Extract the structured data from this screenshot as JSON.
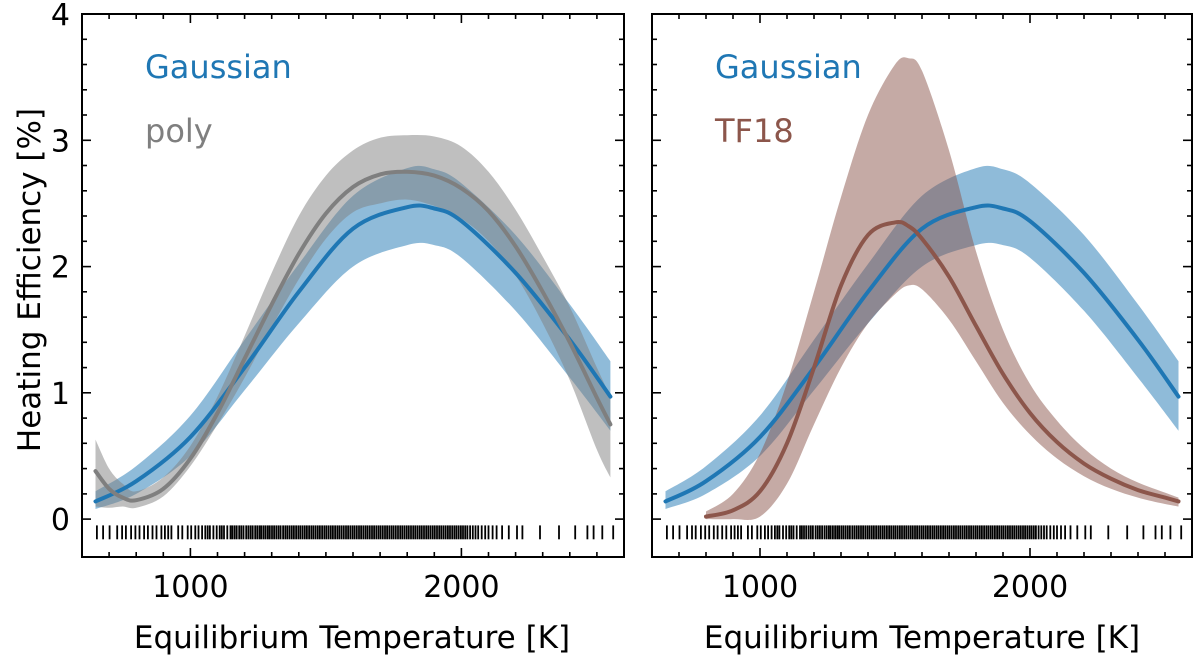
{
  "chart_data": [
    {
      "type": "line",
      "panel": "left",
      "xlabel": "Equilibrium Temperature [K]",
      "ylabel": "Heating Efficiency [%]",
      "xlim": [
        600,
        2600
      ],
      "ylim": [
        -0.3,
        4
      ],
      "xticks": [
        1000,
        2000
      ],
      "yticks": [
        0,
        1,
        2,
        3,
        4
      ],
      "legend": [
        {
          "label": "Gaussian",
          "color": "#1f77b4"
        },
        {
          "label": "poly",
          "color": "#7f7f7f"
        }
      ],
      "series": [
        {
          "name": "Gaussian",
          "color": "#1f77b4",
          "x": [
            650,
            800,
            1000,
            1200,
            1400,
            1600,
            1800,
            1900,
            2000,
            2200,
            2400,
            2550
          ],
          "y": [
            0.14,
            0.3,
            0.65,
            1.2,
            1.8,
            2.3,
            2.47,
            2.46,
            2.36,
            1.95,
            1.42,
            0.97
          ],
          "lower": [
            0.08,
            0.2,
            0.5,
            1.02,
            1.55,
            2.0,
            2.17,
            2.17,
            2.07,
            1.65,
            1.12,
            0.7
          ],
          "upper": [
            0.22,
            0.42,
            0.82,
            1.42,
            2.02,
            2.56,
            2.78,
            2.77,
            2.66,
            2.25,
            1.7,
            1.25
          ]
        },
        {
          "name": "poly",
          "color": "#7f7f7f",
          "x": [
            650,
            700,
            750,
            800,
            900,
            1000,
            1100,
            1200,
            1300,
            1400,
            1500,
            1600,
            1700,
            1800,
            1900,
            2000,
            2100,
            2200,
            2300,
            2400,
            2500,
            2550
          ],
          "y": [
            0.38,
            0.24,
            0.17,
            0.15,
            0.24,
            0.48,
            0.84,
            1.27,
            1.7,
            2.1,
            2.42,
            2.63,
            2.73,
            2.75,
            2.72,
            2.62,
            2.44,
            2.16,
            1.8,
            1.4,
            0.96,
            0.75
          ],
          "lower": [
            0.1,
            0.09,
            0.1,
            0.09,
            0.18,
            0.42,
            0.75,
            1.12,
            1.52,
            1.9,
            2.22,
            2.43,
            2.5,
            2.53,
            2.48,
            2.38,
            2.2,
            1.93,
            1.55,
            1.1,
            0.55,
            0.33
          ],
          "upper": [
            0.63,
            0.4,
            0.28,
            0.22,
            0.33,
            0.58,
            0.97,
            1.45,
            1.95,
            2.4,
            2.72,
            2.92,
            3.02,
            3.04,
            3.03,
            2.95,
            2.75,
            2.45,
            2.08,
            1.68,
            1.2,
            0.97
          ]
        }
      ],
      "rug_x": [
        655,
        678,
        702,
        730,
        748,
        762,
        781,
        797,
        812,
        829,
        843,
        860,
        875,
        893,
        906,
        918,
        930,
        955,
        970,
        990,
        1003,
        1018,
        1030,
        1043,
        1055,
        1064,
        1072,
        1085,
        1097,
        1108,
        1116,
        1124,
        1136,
        1148,
        1155,
        1163,
        1171,
        1180,
        1188,
        1196,
        1206,
        1214,
        1222,
        1230,
        1239,
        1247,
        1255,
        1262,
        1270,
        1278,
        1286,
        1293,
        1301,
        1309,
        1317,
        1325,
        1333,
        1342,
        1350,
        1358,
        1366,
        1374,
        1382,
        1390,
        1398,
        1406,
        1414,
        1422,
        1430,
        1438,
        1446,
        1454,
        1462,
        1470,
        1478,
        1486,
        1494,
        1502,
        1510,
        1518,
        1526,
        1534,
        1542,
        1550,
        1558,
        1566,
        1574,
        1582,
        1590,
        1598,
        1606,
        1614,
        1622,
        1630,
        1638,
        1646,
        1654,
        1662,
        1670,
        1678,
        1686,
        1694,
        1702,
        1710,
        1718,
        1726,
        1734,
        1742,
        1750,
        1758,
        1766,
        1774,
        1782,
        1790,
        1798,
        1806,
        1814,
        1822,
        1830,
        1838,
        1846,
        1854,
        1862,
        1870,
        1878,
        1886,
        1894,
        1902,
        1910,
        1918,
        1926,
        1934,
        1942,
        1950,
        1958,
        1966,
        1974,
        1982,
        1990,
        1998,
        2006,
        2014,
        2022,
        2032,
        2042,
        2052,
        2062,
        2075,
        2088,
        2100,
        2115,
        2130,
        2150,
        2175,
        2205,
        2225,
        2290,
        2360,
        2420,
        2465,
        2488,
        2520,
        2560
      ]
    },
    {
      "type": "line",
      "panel": "right",
      "xlabel": "Equilibrium Temperature [K]",
      "ylabel": "",
      "xlim": [
        600,
        2600
      ],
      "ylim": [
        -0.3,
        4
      ],
      "xticks": [
        1000,
        2000
      ],
      "yticks": [
        0,
        1,
        2,
        3,
        4
      ],
      "legend": [
        {
          "label": "Gaussian",
          "color": "#1f77b4"
        },
        {
          "label": "TF18",
          "color": "#8c564b"
        }
      ],
      "series": [
        {
          "name": "Gaussian",
          "color": "#1f77b4",
          "x": [
            650,
            800,
            1000,
            1200,
            1400,
            1600,
            1800,
            1900,
            2000,
            2200,
            2400,
            2550
          ],
          "y": [
            0.14,
            0.3,
            0.65,
            1.2,
            1.8,
            2.3,
            2.47,
            2.46,
            2.36,
            1.95,
            1.42,
            0.97
          ],
          "lower": [
            0.08,
            0.2,
            0.5,
            1.02,
            1.55,
            2.0,
            2.17,
            2.17,
            2.07,
            1.65,
            1.12,
            0.7
          ],
          "upper": [
            0.22,
            0.42,
            0.82,
            1.42,
            2.02,
            2.56,
            2.78,
            2.77,
            2.66,
            2.25,
            1.7,
            1.25
          ]
        },
        {
          "name": "TF18",
          "color": "#8c564b",
          "x": [
            800,
            900,
            1000,
            1100,
            1200,
            1300,
            1400,
            1500,
            1550,
            1600,
            1700,
            1800,
            1900,
            2000,
            2100,
            2200,
            2300,
            2400,
            2500,
            2550
          ],
          "y": [
            0.02,
            0.07,
            0.22,
            0.6,
            1.2,
            1.85,
            2.25,
            2.35,
            2.32,
            2.22,
            1.92,
            1.53,
            1.15,
            0.84,
            0.61,
            0.44,
            0.32,
            0.23,
            0.17,
            0.14
          ],
          "lower": [
            0.0,
            0.0,
            0.02,
            0.28,
            0.75,
            1.2,
            1.55,
            1.78,
            1.85,
            1.82,
            1.58,
            1.25,
            0.92,
            0.67,
            0.48,
            0.34,
            0.24,
            0.17,
            0.12,
            0.1
          ],
          "upper": [
            0.06,
            0.2,
            0.52,
            1.08,
            1.8,
            2.55,
            3.2,
            3.6,
            3.65,
            3.55,
            2.92,
            2.12,
            1.5,
            1.07,
            0.78,
            0.56,
            0.4,
            0.29,
            0.21,
            0.17
          ]
        }
      ],
      "rug_x": [
        655,
        678,
        702,
        730,
        748,
        762,
        781,
        797,
        812,
        829,
        843,
        860,
        875,
        893,
        906,
        918,
        930,
        955,
        970,
        990,
        1003,
        1018,
        1030,
        1043,
        1055,
        1064,
        1072,
        1085,
        1097,
        1108,
        1116,
        1124,
        1136,
        1148,
        1155,
        1163,
        1171,
        1180,
        1188,
        1196,
        1206,
        1214,
        1222,
        1230,
        1239,
        1247,
        1255,
        1262,
        1270,
        1278,
        1286,
        1293,
        1301,
        1309,
        1317,
        1325,
        1333,
        1342,
        1350,
        1358,
        1366,
        1374,
        1382,
        1390,
        1398,
        1406,
        1414,
        1422,
        1430,
        1438,
        1446,
        1454,
        1462,
        1470,
        1478,
        1486,
        1494,
        1502,
        1510,
        1518,
        1526,
        1534,
        1542,
        1550,
        1558,
        1566,
        1574,
        1582,
        1590,
        1598,
        1606,
        1614,
        1622,
        1630,
        1638,
        1646,
        1654,
        1662,
        1670,
        1678,
        1686,
        1694,
        1702,
        1710,
        1718,
        1726,
        1734,
        1742,
        1750,
        1758,
        1766,
        1774,
        1782,
        1790,
        1798,
        1806,
        1814,
        1822,
        1830,
        1838,
        1846,
        1854,
        1862,
        1870,
        1878,
        1886,
        1894,
        1902,
        1910,
        1918,
        1926,
        1934,
        1942,
        1950,
        1958,
        1966,
        1974,
        1982,
        1990,
        1998,
        2006,
        2014,
        2022,
        2032,
        2042,
        2052,
        2062,
        2075,
        2088,
        2100,
        2115,
        2130,
        2150,
        2175,
        2205,
        2225,
        2290,
        2360,
        2420,
        2465,
        2488,
        2520,
        2560
      ]
    }
  ]
}
